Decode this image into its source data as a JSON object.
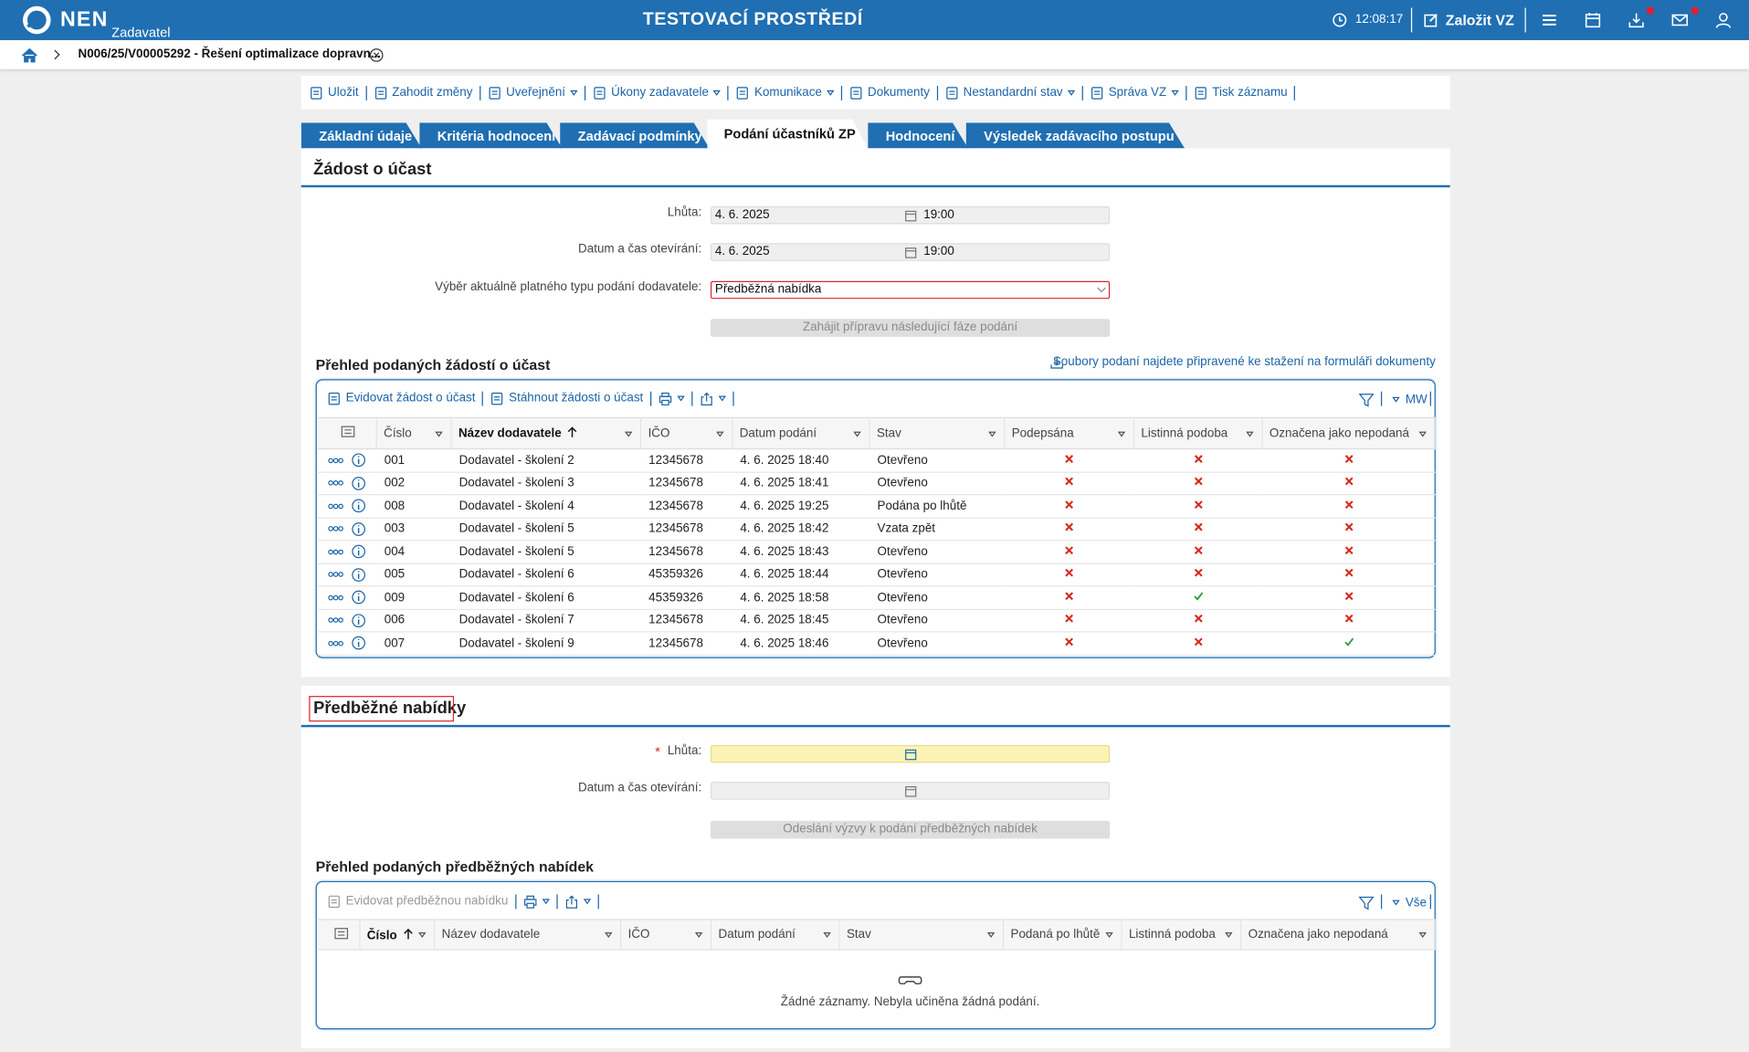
{
  "header": {
    "logo": "NEN",
    "role": "Zadavatel",
    "title": "TESTOVACÍ PROSTŘEDÍ",
    "time": "12:08:17",
    "create": "Založit VZ"
  },
  "breadcrumb": {
    "item": "N006/25/V00005292 - Řešení optimalizace dopravn..."
  },
  "toolbar": [
    {
      "label": "Uložit",
      "menu": false
    },
    {
      "label": "Zahodit změny",
      "menu": false
    },
    {
      "label": "Uveřejnění",
      "menu": true
    },
    {
      "label": "Úkony zadavatele",
      "menu": true
    },
    {
      "label": "Komunikace",
      "menu": true
    },
    {
      "label": "Dokumenty",
      "menu": false
    },
    {
      "label": "Nestandardní stav",
      "menu": true
    },
    {
      "label": "Správa VZ",
      "menu": true
    },
    {
      "label": "Tisk záznamu",
      "menu": false
    }
  ],
  "tabs": [
    {
      "label": "Základní údaje",
      "active": false
    },
    {
      "label": "Kritéria hodnocení",
      "active": false
    },
    {
      "label": "Zadávací podmínky",
      "active": false
    },
    {
      "label": "Podání účastníků ZP",
      "active": true
    },
    {
      "label": "Hodnocení",
      "active": false
    },
    {
      "label": "Výsledek zadávacího postupu",
      "active": false
    }
  ],
  "sections": [
    {
      "title": "Žádost o účast",
      "highlighted": false,
      "fields": [
        {
          "label": "Lhůta:",
          "date": "4. 6. 2025",
          "time": "19:00"
        },
        {
          "label": "Datum a čas otevírání:",
          "date": "4. 6. 2025",
          "time": "19:00"
        },
        {
          "label": "Výběr aktuálně platného typu podání dodavatele:",
          "value": "Předběžná nabídka",
          "highlighted": true
        }
      ],
      "button": "Zahájit přípravu následující fáze podání",
      "grid": {
        "title": "Přehled podaných žádostí o účast",
        "link": "Soubory podaní najdete připravené ke stažení na formuláři dokumenty",
        "actions": [
          {
            "label": "Evidovat žádost o účast",
            "disabled": false
          },
          {
            "label": "Stáhnout žádosti o účast",
            "disabled": false
          }
        ],
        "view": "MW",
        "columns": [
          {
            "label": "Číslo",
            "sort": false
          },
          {
            "label": "Název dodavatele",
            "sort": true
          },
          {
            "label": "IČO",
            "sort": false
          },
          {
            "label": "Datum podání",
            "sort": false
          },
          {
            "label": "Stav",
            "sort": false
          },
          {
            "label": "Podepsána",
            "sort": false
          },
          {
            "label": "Listinná podoba",
            "sort": false
          },
          {
            "label": "Označena jako nepodaná",
            "sort": false
          }
        ],
        "rows": [
          [
            "001",
            "Dodavatel - školení 2",
            "12345678",
            "4. 6. 2025 18:40",
            "Otevřeno",
            false,
            false,
            false
          ],
          [
            "002",
            "Dodavatel - školení 3",
            "12345678",
            "4. 6. 2025 18:41",
            "Otevřeno",
            false,
            false,
            false
          ],
          [
            "008",
            "Dodavatel - školení 4",
            "12345678",
            "4. 6. 2025 19:25",
            "Podána po lhůtě",
            false,
            false,
            false
          ],
          [
            "003",
            "Dodavatel - školení 5",
            "12345678",
            "4. 6. 2025 18:42",
            "Vzata zpět",
            false,
            false,
            false
          ],
          [
            "004",
            "Dodavatel - školení 5",
            "12345678",
            "4. 6. 2025 18:43",
            "Otevřeno",
            false,
            false,
            false
          ],
          [
            "005",
            "Dodavatel - školení 6",
            "45359326",
            "4. 6. 2025 18:44",
            "Otevřeno",
            false,
            false,
            false
          ],
          [
            "009",
            "Dodavatel - školení 6",
            "45359326",
            "4. 6. 2025 18:58",
            "Otevřeno",
            false,
            true,
            false
          ],
          [
            "006",
            "Dodavatel - školení 7",
            "12345678",
            "4. 6. 2025 18:45",
            "Otevřeno",
            false,
            false,
            false
          ],
          [
            "007",
            "Dodavatel - školení 9",
            "12345678",
            "4. 6. 2025 18:46",
            "Otevřeno",
            false,
            false,
            true
          ]
        ]
      }
    },
    {
      "title": "Předběžné nabídky",
      "highlighted": true,
      "fields": [
        {
          "label": "Lhůta:",
          "required_mark": "*"
        },
        {
          "label": "Datum a čas otevírání:"
        }
      ],
      "button": "Odeslání výzvy k podání předběžných nabídek",
      "grid": {
        "title": "Přehled podaných předběžných nabídek",
        "actions": [
          {
            "label": "Evidovat předběžnou nabídku",
            "disabled": true
          }
        ],
        "view": "Vše",
        "columns": [
          {
            "label": "Číslo",
            "sort": true
          },
          {
            "label": "Název dodavatele",
            "sort": false
          },
          {
            "label": "IČO",
            "sort": false
          },
          {
            "label": "Datum podání",
            "sort": false
          },
          {
            "label": "Stav",
            "sort": false
          },
          {
            "label": "Podaná po lhůtě",
            "sort": false
          },
          {
            "label": "Listinná podoba",
            "sort": false
          },
          {
            "label": "Označena jako nepodaná",
            "sort": false
          }
        ],
        "rows": [],
        "empty_text": "Žádné záznamy. Nebyla učiněna žádná podání."
      }
    }
  ]
}
